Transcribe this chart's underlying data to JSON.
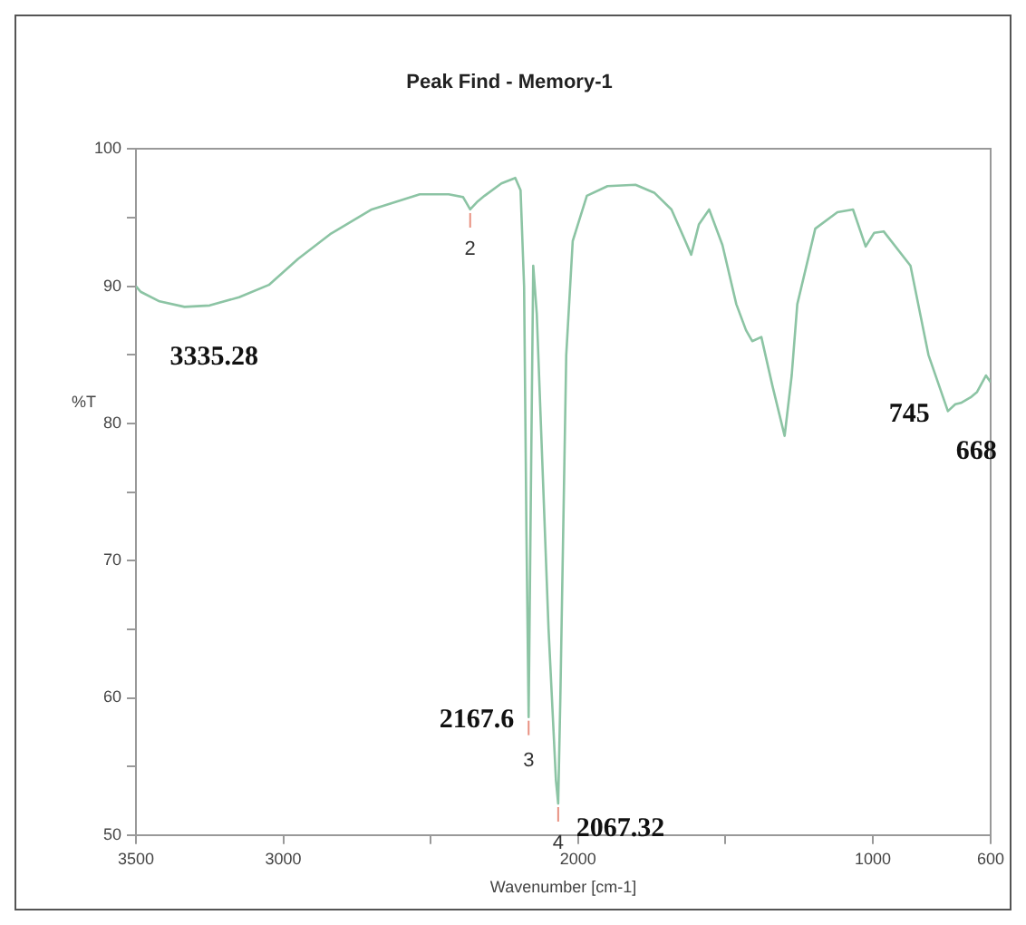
{
  "chart_data": {
    "type": "line",
    "title": "Peak Find - Memory-1",
    "xlabel": "Wavenumber [cm-1]",
    "ylabel": "%T",
    "xlim": [
      3500,
      600
    ],
    "xticks": [
      3500,
      3000,
      {
        "value": 2500,
        "label": null
      },
      2000,
      {
        "value": 1500,
        "label": null
      },
      1000,
      600
    ],
    "ylim": [
      50,
      100
    ],
    "yticks": [
      50,
      {
        "value": 55,
        "label": null
      },
      60,
      {
        "value": 65,
        "label": null
      },
      70,
      {
        "value": 75,
        "label": null
      },
      80,
      {
        "value": 85,
        "label": null
      },
      90,
      {
        "value": 95,
        "label": null
      },
      100
    ],
    "grid": false,
    "legend": false,
    "marker": "none",
    "line_style": "solid",
    "series": [
      {
        "color": "#8cc4a4",
        "x": [
          3500,
          3484,
          3420,
          3335.28,
          3250,
          3150,
          3049,
          2950,
          2841,
          2700,
          2537,
          2439,
          2390,
          2366,
          2340,
          2317,
          2260,
          2213,
          2195,
          2183,
          2175,
          2167.6,
          2160,
          2152,
          2140,
          2100,
          2075,
          2067.32,
          2060,
          2040,
          2018,
          1970,
          1900,
          1805,
          1740,
          1683,
          1640,
          1616,
          1590,
          1555,
          1510,
          1463,
          1430,
          1409,
          1378,
          1341,
          1299,
          1275,
          1256,
          1195,
          1120,
          1067,
          1024,
          995,
          963,
          872,
          811,
          745,
          720,
          701,
          668,
          646,
          616,
          600
        ],
        "values": [
          90.0,
          89.6,
          88.9,
          88.5,
          88.6,
          89.2,
          90.1,
          92.0,
          93.8,
          95.6,
          96.7,
          96.7,
          96.5,
          95.6,
          96.2,
          96.6,
          97.5,
          97.9,
          97.0,
          90.0,
          72.0,
          58.6,
          75.0,
          91.5,
          88.0,
          65.0,
          54.0,
          52.3,
          60.0,
          85.0,
          93.3,
          96.6,
          97.3,
          97.4,
          96.8,
          95.6,
          93.5,
          92.3,
          94.5,
          95.6,
          93.0,
          88.7,
          86.8,
          86.0,
          86.3,
          82.8,
          79.1,
          83.5,
          88.7,
          94.2,
          95.4,
          95.6,
          92.9,
          93.9,
          94.0,
          91.5,
          85.0,
          80.9,
          81.4,
          81.5,
          81.9,
          82.3,
          83.5,
          83.0
        ]
      }
    ],
    "annotations": [
      {
        "text": "3335.28",
        "x": 3335.28,
        "y": 88.5
      },
      {
        "text": "2",
        "x": 2366,
        "y": 95.6
      },
      {
        "text": "2167.6",
        "x": 2167.6,
        "y": 58.6
      },
      {
        "text": "3",
        "x": 2167.6,
        "y": 58.6
      },
      {
        "text": "2067.32",
        "x": 2067.32,
        "y": 52.3
      },
      {
        "text": "4",
        "x": 2067.32,
        "y": 52.3
      },
      {
        "text": "745",
        "x": 745,
        "y": 80.9
      },
      {
        "text": "668",
        "x": 668,
        "y": 81.9
      }
    ]
  }
}
